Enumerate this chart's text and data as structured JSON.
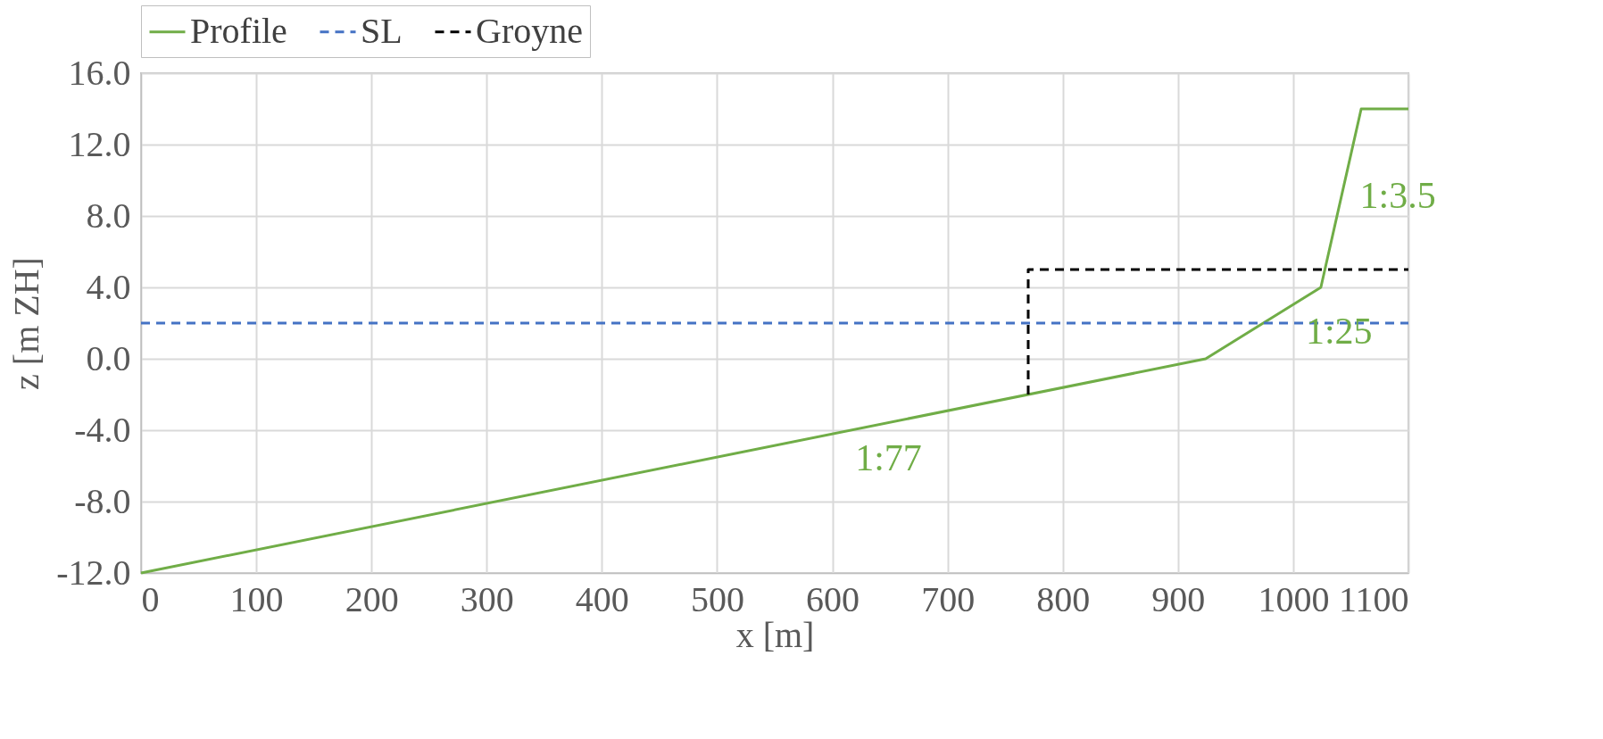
{
  "chart_data": {
    "type": "line",
    "xlabel": "x [m]",
    "ylabel": "z [m ZH]",
    "xlim": [
      0,
      1100
    ],
    "xticks": [
      0,
      100,
      200,
      300,
      400,
      500,
      600,
      700,
      800,
      900,
      1000,
      1100
    ],
    "ylim": [
      -12,
      16
    ],
    "yticks": [
      {
        "value": -12,
        "label": "-12.0"
      },
      {
        "value": -8,
        "label": "-8.0"
      },
      {
        "value": -4,
        "label": "-4.0"
      },
      {
        "value": 0,
        "label": "0.0"
      },
      {
        "value": 4,
        "label": "4.0"
      },
      {
        "value": 8,
        "label": "8.0"
      },
      {
        "value": 12,
        "label": "12.0"
      },
      {
        "value": 16,
        "label": "16.0"
      }
    ],
    "grid": true,
    "legend": "top",
    "marker": "none",
    "series": [
      {
        "name": "Profile",
        "color": "#70ad47",
        "line_style": "solid",
        "x": [
          0,
          924,
          1024,
          1059,
          1100
        ],
        "values": [
          -12,
          0,
          4,
          14,
          14
        ]
      },
      {
        "name": "SL",
        "color": "#4472c4",
        "line_style": "dashed",
        "x": [
          0,
          1100
        ],
        "values": [
          2,
          2
        ]
      },
      {
        "name": "Groyne",
        "color": "#000000",
        "line_style": "dashed",
        "x": [
          770,
          770,
          1100
        ],
        "values": [
          -2,
          5,
          5
        ]
      }
    ],
    "annotations": [
      {
        "text": "1:77",
        "x": 609,
        "y": -4.1
      },
      {
        "text": "1:25",
        "x": 1000,
        "y": 3
      },
      {
        "text": "1:3.5",
        "x": 1047,
        "y": 10.6
      }
    ]
  }
}
